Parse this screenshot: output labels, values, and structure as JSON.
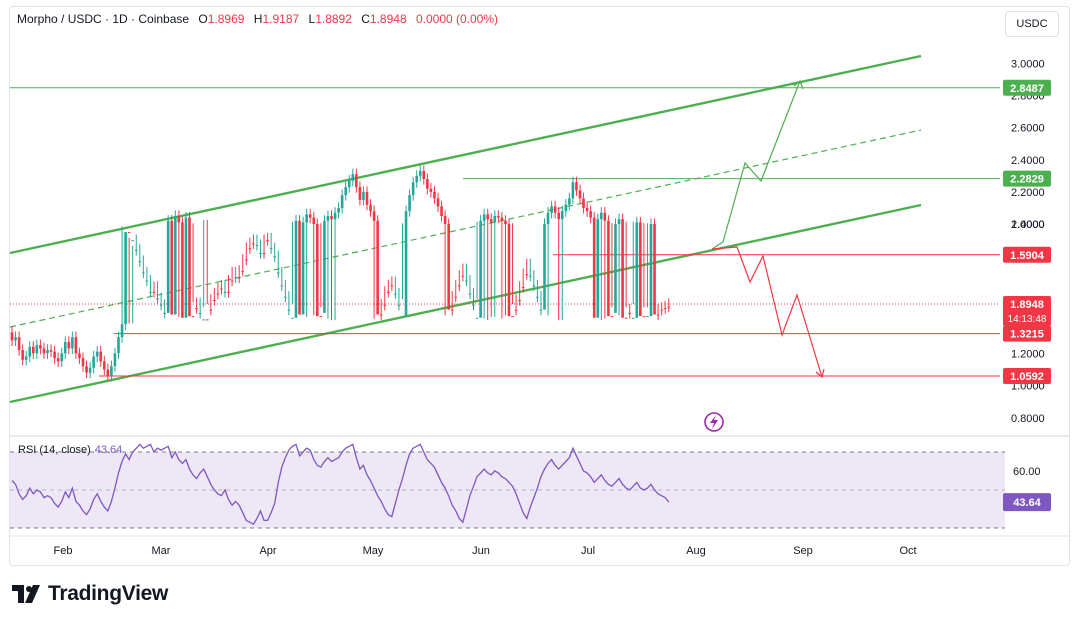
{
  "header": {
    "symbol": "Morpho / USDC · 1D · Coinbase",
    "o_label": "O",
    "o_value": "1.8969",
    "h_label": "H",
    "h_value": "1.9187",
    "l_label": "L",
    "l_value": "1.8892",
    "c_label": "C",
    "c_value": "1.8948",
    "change": "0.0000 (0.00%)"
  },
  "currency_button": "USDC",
  "rsi": {
    "title": "RSI (14, close)",
    "value": "43.64"
  },
  "brand": {
    "name": "TradingView"
  },
  "colors": {
    "up": "#26a69a",
    "down": "#f23645",
    "channel": "#4caf50",
    "rsi_line": "#7e57c2",
    "rsi_band": "#ede7f6",
    "support": "#f23645",
    "resistance": "#4caf50"
  },
  "icons": {
    "event": "lightning-icon",
    "logo": "tradingview-logo-icon"
  },
  "chart_data": {
    "type": "candlestick",
    "price_axis": {
      "ticks": [
        "3.0000",
        "2.8000",
        "2.6000",
        "2.4000",
        "2.2000",
        "2.0000",
        "1.4000",
        "1.2000",
        "1.0000",
        "0.8000"
      ],
      "ylim": [
        0.75,
        3.1
      ]
    },
    "time_axis": {
      "ticks": [
        "Feb",
        "Mar",
        "Apr",
        "May",
        "Jun",
        "Jul",
        "Aug",
        "Sep",
        "Oct"
      ]
    },
    "levels": [
      {
        "value": 2.8487,
        "label": "2.8487",
        "kind": "resistance"
      },
      {
        "value": 2.2829,
        "label": "2.2829",
        "kind": "resistance"
      },
      {
        "value": 1.5904,
        "label": "1.5904",
        "kind": "support"
      },
      {
        "value": 1.3215,
        "label": "1.3215",
        "kind": "support"
      },
      {
        "value": 1.0592,
        "label": "1.0592",
        "kind": "support"
      }
    ],
    "last_price": {
      "value": 1.8948,
      "label": "1.8948",
      "countdown": "14:13:48"
    },
    "rsi_axis": {
      "ticks": [
        "60.00"
      ],
      "upper_band": 70,
      "lower_band": 30,
      "last": 43.64
    },
    "closes": [
      1.28,
      1.3,
      1.22,
      1.16,
      1.18,
      1.24,
      1.2,
      1.25,
      1.23,
      1.2,
      1.22,
      1.21,
      1.17,
      1.15,
      1.2,
      1.27,
      1.23,
      1.3,
      1.2,
      1.17,
      1.12,
      1.08,
      1.11,
      1.18,
      1.21,
      1.15,
      1.1,
      1.06,
      1.12,
      1.2,
      1.3,
      1.38,
      1.45,
      1.42,
      1.5,
      1.56,
      1.63,
      1.7,
      1.75,
      1.82,
      1.79,
      1.86,
      1.9,
      1.95,
      2.02,
      1.96,
      2.05,
      2.01,
      1.98,
      2.04,
      1.97,
      1.92,
      1.89,
      1.95,
      1.99,
      1.93,
      1.87,
      1.83,
      1.8,
      1.78,
      1.82,
      1.75,
      1.7,
      1.73,
      1.69,
      1.62,
      1.55,
      1.52,
      1.5,
      1.53,
      1.58,
      1.5,
      1.49,
      1.55,
      1.6,
      1.7,
      1.78,
      1.85,
      1.93,
      1.98,
      2.02,
      1.96,
      2.01,
      2.06,
      2.04,
      2.0,
      1.97,
      1.95,
      2.02,
      2.05,
      2.03,
      2.07,
      2.1,
      2.18,
      2.23,
      2.27,
      2.31,
      2.23,
      2.15,
      2.2,
      2.12,
      2.08,
      2.02,
      1.96,
      1.9,
      1.82,
      1.78,
      1.76,
      1.83,
      1.9,
      1.97,
      2.08,
      2.18,
      2.26,
      2.3,
      2.33,
      2.28,
      2.22,
      2.2,
      2.16,
      2.11,
      2.05,
      2.0,
      1.93,
      1.85,
      1.78,
      1.72,
      1.68,
      1.75,
      1.83,
      1.9,
      1.98,
      2.02,
      2.06,
      2.03,
      2.01,
      2.05,
      2.04,
      2.02,
      2.0,
      1.97,
      1.93,
      1.87,
      1.79,
      1.71,
      1.65,
      1.72,
      1.78,
      1.85,
      1.93,
      2.0,
      2.07,
      2.11,
      2.07,
      2.03,
      2.08,
      2.12,
      2.16,
      2.26,
      2.21,
      2.16,
      2.1,
      2.08,
      2.04,
      1.98,
      2.03,
      2.07,
      2.02,
      1.97,
      1.95,
      2.0,
      2.03,
      1.98,
      1.95,
      1.93,
      1.98,
      2.01,
      1.97,
      1.95,
      1.97,
      2.0,
      1.96,
      1.93,
      1.92,
      1.91,
      1.8948
    ],
    "rsi": [
      55,
      53,
      48,
      45,
      47,
      51,
      48,
      50,
      49,
      46,
      47,
      46,
      43,
      41,
      44,
      49,
      46,
      51,
      44,
      42,
      39,
      37,
      40,
      45,
      48,
      44,
      41,
      39,
      44,
      51,
      59,
      65,
      69,
      66,
      70,
      72,
      74,
      72,
      73,
      74,
      70,
      72,
      71,
      72,
      73,
      67,
      70,
      66,
      64,
      66,
      61,
      58,
      56,
      59,
      61,
      57,
      53,
      50,
      48,
      47,
      50,
      45,
      42,
      44,
      42,
      38,
      34,
      33,
      32,
      35,
      39,
      34,
      34,
      38,
      43,
      54,
      62,
      67,
      71,
      73,
      74,
      68,
      70,
      72,
      71,
      66,
      63,
      62,
      65,
      67,
      65,
      66,
      67,
      70,
      72,
      73,
      74,
      67,
      61,
      63,
      58,
      55,
      51,
      47,
      44,
      40,
      37,
      36,
      43,
      50,
      56,
      63,
      69,
      72,
      73,
      74,
      70,
      66,
      64,
      62,
      58,
      54,
      51,
      47,
      42,
      39,
      35,
      33,
      40,
      47,
      52,
      57,
      59,
      61,
      59,
      58,
      60,
      59,
      57,
      56,
      54,
      52,
      48,
      43,
      38,
      35,
      41,
      46,
      51,
      57,
      61,
      64,
      66,
      63,
      61,
      63,
      65,
      67,
      72,
      68,
      64,
      60,
      59,
      57,
      54,
      56,
      58,
      55,
      53,
      52,
      54,
      56,
      53,
      51,
      50,
      52,
      54,
      51,
      50,
      51,
      53,
      50,
      48,
      47,
      46,
      43.64
    ]
  }
}
